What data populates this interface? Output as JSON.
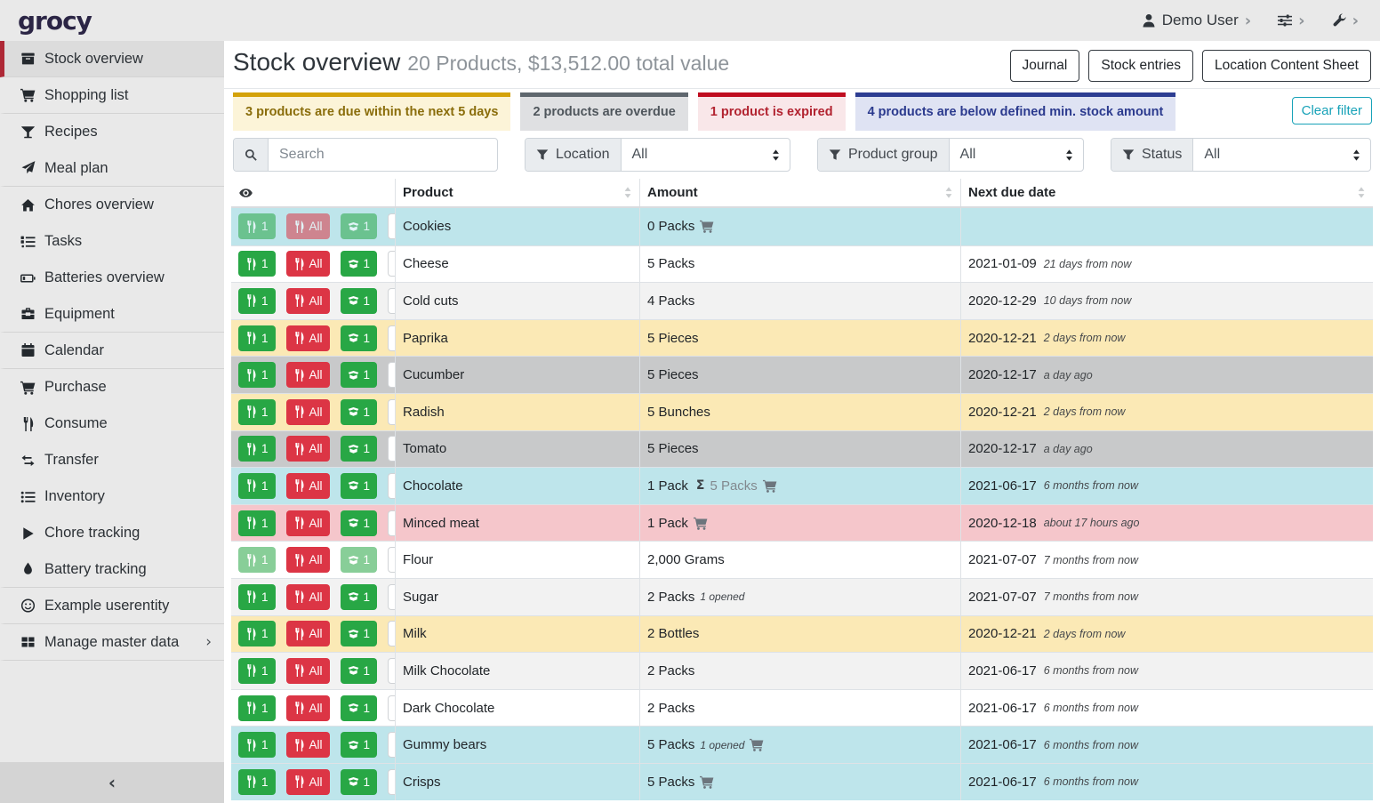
{
  "colors": {
    "brand_red": "#ae2836",
    "button_green": "#28a745",
    "button_red": "#dc3545",
    "teal": "#17a2b8"
  },
  "navbar": {
    "logo": "grocy",
    "user": {
      "label": "Demo User",
      "icon": "user-icon"
    },
    "menus": [
      {
        "icon": "sliders-icon",
        "name": "settings-menu"
      },
      {
        "icon": "wrench-icon",
        "name": "admin-menu"
      }
    ]
  },
  "sidebar": {
    "items": [
      {
        "label": "Stock overview",
        "icon": "box-icon",
        "active": true,
        "divider": true
      },
      {
        "label": "Shopping list",
        "icon": "cart-icon",
        "divider": true
      },
      {
        "label": "Recipes",
        "icon": "cocktail-icon"
      },
      {
        "label": "Meal plan",
        "icon": "paper-plane-icon",
        "divider": true
      },
      {
        "label": "Chores overview",
        "icon": "home-icon"
      },
      {
        "label": "Tasks",
        "icon": "list-check-icon"
      },
      {
        "label": "Batteries overview",
        "icon": "battery-icon"
      },
      {
        "label": "Equipment",
        "icon": "toolbox-icon",
        "divider": true
      },
      {
        "label": "Calendar",
        "icon": "calendar-icon",
        "divider": true
      },
      {
        "label": "Purchase",
        "icon": "cart-icon"
      },
      {
        "label": "Consume",
        "icon": "utensils-icon"
      },
      {
        "label": "Transfer",
        "icon": "exchange-icon"
      },
      {
        "label": "Inventory",
        "icon": "list-icon"
      },
      {
        "label": "Chore tracking",
        "icon": "play-icon"
      },
      {
        "label": "Battery tracking",
        "icon": "droplet-icon",
        "divider": true
      },
      {
        "label": "Example userentity",
        "icon": "smiley-icon",
        "divider": true
      },
      {
        "label": "Manage master data",
        "icon": "table-icon",
        "chevron": true,
        "divider": true
      }
    ]
  },
  "header": {
    "title": "Stock overview",
    "subtitle": "20 Products, $13,512.00 total value",
    "buttons": [
      "Journal",
      "Stock entries",
      "Location Content Sheet"
    ]
  },
  "alerts": [
    {
      "text": "3 products are due within the next 5 days",
      "border": "#d4a20a",
      "bg": "#fcf4d8",
      "fg": "#8a6d0b"
    },
    {
      "text": "2 products are overdue",
      "border": "#5f676e",
      "bg": "#dfe0e2",
      "fg": "#4f565c"
    },
    {
      "text": "1 product is expired",
      "border": "#c00d20",
      "bg": "#f9e7e9",
      "fg": "#b22330"
    },
    {
      "text": "4 products are below defined min. stock amount",
      "border": "#2d3d92",
      "bg": "#dfe3f3",
      "fg": "#2b3a8e"
    }
  ],
  "clear_filter": "Clear filter",
  "filters": {
    "search_placeholder": "Search",
    "selects": [
      {
        "label": "Location",
        "value": "All"
      },
      {
        "label": "Product group",
        "value": "All"
      },
      {
        "label": "Status",
        "value": "All"
      }
    ]
  },
  "table": {
    "columns": [
      "Product",
      "Amount",
      "Next due date"
    ],
    "buttons": {
      "consume_one": "1",
      "consume_all": "All",
      "open_one": "1"
    },
    "status_colors": {
      "plain": "#ffffff",
      "stripe": "#f2f2f2",
      "info": "#bee5eb",
      "warning": "#fbe9b5",
      "secondary": "#c8c9ca",
      "danger": "#f5c6cb"
    },
    "rows": [
      {
        "product": "Cookies",
        "amount": "0 Packs",
        "cart": true,
        "date": "",
        "ago": "",
        "status": "info",
        "faded": [
          true,
          true,
          true
        ]
      },
      {
        "product": "Cheese",
        "amount": "5 Packs",
        "date": "2021-01-09",
        "ago": "21 days from now",
        "status": "plain"
      },
      {
        "product": "Cold cuts",
        "amount": "4 Packs",
        "date": "2020-12-29",
        "ago": "10 days from now",
        "status": "stripe"
      },
      {
        "product": "Paprika",
        "amount": "5 Pieces",
        "date": "2020-12-21",
        "ago": "2 days from now",
        "status": "warning"
      },
      {
        "product": "Cucumber",
        "amount": "5 Pieces",
        "date": "2020-12-17",
        "ago": "a day ago",
        "status": "secondary"
      },
      {
        "product": "Radish",
        "amount": "5 Bunches",
        "date": "2020-12-21",
        "ago": "2 days from now",
        "status": "warning"
      },
      {
        "product": "Tomato",
        "amount": "5 Pieces",
        "date": "2020-12-17",
        "ago": "a day ago",
        "status": "secondary"
      },
      {
        "product": "Chocolate",
        "amount": "1 Pack",
        "sum": "5 Packs",
        "cart": true,
        "date": "2021-06-17",
        "ago": "6 months from now",
        "status": "info"
      },
      {
        "product": "Minced meat",
        "amount": "1 Pack",
        "cart": true,
        "date": "2020-12-18",
        "ago": "about 17 hours ago",
        "status": "danger"
      },
      {
        "product": "Flour",
        "amount": "2,000 Grams",
        "date": "2021-07-07",
        "ago": "7 months from now",
        "status": "plain",
        "faded": [
          true,
          false,
          true
        ]
      },
      {
        "product": "Sugar",
        "amount": "2 Packs",
        "opened": "1 opened",
        "date": "2021-07-07",
        "ago": "7 months from now",
        "status": "stripe"
      },
      {
        "product": "Milk",
        "amount": "2 Bottles",
        "date": "2020-12-21",
        "ago": "2 days from now",
        "status": "warning"
      },
      {
        "product": "Milk Chocolate",
        "amount": "2 Packs",
        "date": "2021-06-17",
        "ago": "6 months from now",
        "status": "stripe"
      },
      {
        "product": "Dark Chocolate",
        "amount": "2 Packs",
        "date": "2021-06-17",
        "ago": "6 months from now",
        "status": "plain"
      },
      {
        "product": "Gummy bears",
        "amount": "5 Packs",
        "opened": "1 opened",
        "cart": true,
        "date": "2021-06-17",
        "ago": "6 months from now",
        "status": "info"
      },
      {
        "product": "Crisps",
        "amount": "5 Packs",
        "cart": true,
        "date": "2021-06-17",
        "ago": "6 months from now",
        "status": "info"
      }
    ]
  }
}
